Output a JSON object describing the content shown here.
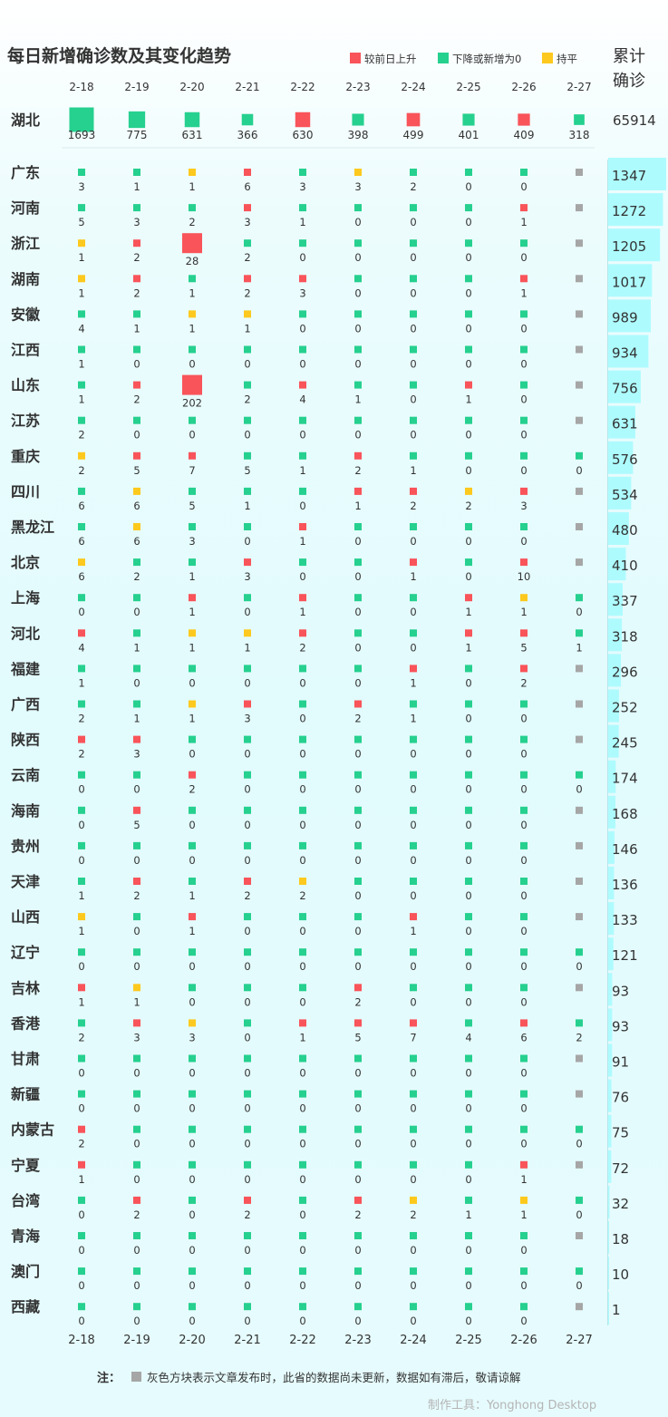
{
  "chart_data": {
    "type": "table",
    "title": "每日新增确诊数及其变化趋势",
    "legend": [
      {
        "label": "较前日上升",
        "color": "#f8545a"
      },
      {
        "label": "下降或新增为0",
        "color": "#26d08f"
      },
      {
        "label": "持平",
        "color": "#fdc91e"
      }
    ],
    "total_label_line1": "累计",
    "total_label_line2": "确诊",
    "dates": [
      "2-18",
      "2-19",
      "2-20",
      "2-21",
      "2-22",
      "2-23",
      "2-24",
      "2-25",
      "2-26",
      "2-27"
    ],
    "colors": {
      "up": "#f8545a",
      "down": "#26d08f",
      "flat": "#fdc91e",
      "none": "#a6a6a6",
      "total_bar": "#aefbfe"
    },
    "hubei": {
      "name": "湖北",
      "values": [
        1693,
        775,
        631,
        366,
        630,
        398,
        499,
        401,
        409,
        318
      ],
      "status": [
        "down",
        "down",
        "down",
        "down",
        "up",
        "down",
        "up",
        "down",
        "up",
        "down"
      ],
      "total": "65914"
    },
    "provinces": [
      {
        "name": "广东",
        "values": [
          3,
          1,
          1,
          6,
          3,
          3,
          2,
          0,
          0,
          null
        ],
        "status": [
          "down",
          "down",
          "flat",
          "up",
          "down",
          "flat",
          "down",
          "down",
          "down",
          "none"
        ],
        "total": 1347
      },
      {
        "name": "河南",
        "values": [
          5,
          3,
          2,
          3,
          1,
          0,
          0,
          0,
          1,
          null
        ],
        "status": [
          "down",
          "down",
          "down",
          "up",
          "down",
          "down",
          "down",
          "down",
          "up",
          "none"
        ],
        "total": 1272
      },
      {
        "name": "浙江",
        "values": [
          1,
          2,
          28,
          2,
          0,
          0,
          0,
          0,
          0,
          null
        ],
        "status": [
          "flat",
          "up",
          "up",
          "down",
          "down",
          "down",
          "down",
          "down",
          "down",
          "none"
        ],
        "total": 1205
      },
      {
        "name": "湖南",
        "values": [
          1,
          2,
          1,
          2,
          3,
          0,
          0,
          0,
          1,
          null
        ],
        "status": [
          "flat",
          "up",
          "down",
          "up",
          "up",
          "down",
          "down",
          "down",
          "up",
          "none"
        ],
        "total": 1017
      },
      {
        "name": "安徽",
        "values": [
          4,
          1,
          1,
          1,
          0,
          0,
          0,
          0,
          0,
          null
        ],
        "status": [
          "down",
          "down",
          "flat",
          "flat",
          "down",
          "down",
          "down",
          "down",
          "down",
          "none"
        ],
        "total": 989
      },
      {
        "name": "江西",
        "values": [
          1,
          0,
          0,
          0,
          0,
          0,
          0,
          0,
          0,
          null
        ],
        "status": [
          "down",
          "down",
          "down",
          "down",
          "down",
          "down",
          "down",
          "down",
          "down",
          "none"
        ],
        "total": 934
      },
      {
        "name": "山东",
        "values": [
          1,
          2,
          202,
          2,
          4,
          1,
          0,
          1,
          0,
          null
        ],
        "status": [
          "down",
          "up",
          "up",
          "down",
          "up",
          "down",
          "down",
          "up",
          "down",
          "none"
        ],
        "total": 756
      },
      {
        "name": "江苏",
        "values": [
          2,
          0,
          0,
          0,
          0,
          0,
          0,
          0,
          0,
          null
        ],
        "status": [
          "down",
          "down",
          "down",
          "down",
          "down",
          "down",
          "down",
          "down",
          "down",
          "none"
        ],
        "total": 631
      },
      {
        "name": "重庆",
        "values": [
          2,
          5,
          7,
          5,
          1,
          2,
          1,
          0,
          0,
          0
        ],
        "status": [
          "flat",
          "up",
          "up",
          "down",
          "down",
          "up",
          "down",
          "down",
          "down",
          "down"
        ],
        "total": 576
      },
      {
        "name": "四川",
        "values": [
          6,
          6,
          5,
          1,
          0,
          1,
          2,
          2,
          3,
          null
        ],
        "status": [
          "down",
          "flat",
          "down",
          "down",
          "down",
          "up",
          "up",
          "flat",
          "up",
          "none"
        ],
        "total": 534
      },
      {
        "name": "黑龙江",
        "values": [
          6,
          6,
          3,
          0,
          1,
          0,
          0,
          0,
          0,
          null
        ],
        "status": [
          "down",
          "flat",
          "down",
          "down",
          "up",
          "down",
          "down",
          "down",
          "down",
          "none"
        ],
        "total": 480
      },
      {
        "name": "北京",
        "values": [
          6,
          2,
          1,
          3,
          0,
          0,
          1,
          0,
          10,
          null
        ],
        "status": [
          "flat",
          "down",
          "down",
          "up",
          "down",
          "down",
          "up",
          "down",
          "up",
          "none"
        ],
        "total": 410
      },
      {
        "name": "上海",
        "values": [
          0,
          0,
          1,
          0,
          1,
          0,
          0,
          1,
          1,
          0
        ],
        "status": [
          "down",
          "down",
          "up",
          "down",
          "up",
          "down",
          "down",
          "up",
          "flat",
          "down"
        ],
        "total": 337
      },
      {
        "name": "河北",
        "values": [
          4,
          1,
          1,
          1,
          2,
          0,
          0,
          1,
          5,
          1
        ],
        "status": [
          "up",
          "down",
          "flat",
          "flat",
          "up",
          "down",
          "down",
          "up",
          "up",
          "down"
        ],
        "total": 318
      },
      {
        "name": "福建",
        "values": [
          1,
          0,
          0,
          0,
          0,
          0,
          1,
          0,
          2,
          null
        ],
        "status": [
          "down",
          "down",
          "down",
          "down",
          "down",
          "down",
          "up",
          "down",
          "up",
          "none"
        ],
        "total": 296
      },
      {
        "name": "广西",
        "values": [
          2,
          1,
          1,
          3,
          0,
          2,
          1,
          0,
          0,
          null
        ],
        "status": [
          "down",
          "down",
          "flat",
          "up",
          "down",
          "up",
          "down",
          "down",
          "down",
          "none"
        ],
        "total": 252
      },
      {
        "name": "陕西",
        "values": [
          2,
          3,
          0,
          0,
          0,
          0,
          0,
          0,
          0,
          null
        ],
        "status": [
          "up",
          "up",
          "down",
          "down",
          "down",
          "down",
          "down",
          "down",
          "down",
          "none"
        ],
        "total": 245
      },
      {
        "name": "云南",
        "values": [
          0,
          0,
          2,
          0,
          0,
          0,
          0,
          0,
          0,
          0
        ],
        "status": [
          "down",
          "down",
          "up",
          "down",
          "down",
          "down",
          "down",
          "down",
          "down",
          "down"
        ],
        "total": 174
      },
      {
        "name": "海南",
        "values": [
          0,
          5,
          0,
          0,
          0,
          0,
          0,
          0,
          0,
          null
        ],
        "status": [
          "down",
          "up",
          "down",
          "down",
          "down",
          "down",
          "down",
          "down",
          "down",
          "none"
        ],
        "total": 168
      },
      {
        "name": "贵州",
        "values": [
          0,
          0,
          0,
          0,
          0,
          0,
          0,
          0,
          0,
          null
        ],
        "status": [
          "down",
          "down",
          "down",
          "down",
          "down",
          "down",
          "down",
          "down",
          "down",
          "none"
        ],
        "total": 146
      },
      {
        "name": "天津",
        "values": [
          1,
          2,
          1,
          2,
          2,
          0,
          0,
          0,
          0,
          null
        ],
        "status": [
          "down",
          "up",
          "down",
          "up",
          "flat",
          "down",
          "down",
          "down",
          "down",
          "none"
        ],
        "total": 136
      },
      {
        "name": "山西",
        "values": [
          1,
          0,
          1,
          0,
          0,
          0,
          1,
          0,
          0,
          null
        ],
        "status": [
          "flat",
          "down",
          "up",
          "down",
          "down",
          "down",
          "up",
          "down",
          "down",
          "none"
        ],
        "total": 133
      },
      {
        "name": "辽宁",
        "values": [
          0,
          0,
          0,
          0,
          0,
          0,
          0,
          0,
          0,
          0
        ],
        "status": [
          "down",
          "down",
          "down",
          "down",
          "down",
          "down",
          "down",
          "down",
          "down",
          "down"
        ],
        "total": 121
      },
      {
        "name": "吉林",
        "values": [
          1,
          1,
          0,
          0,
          0,
          2,
          0,
          0,
          0,
          null
        ],
        "status": [
          "up",
          "flat",
          "down",
          "down",
          "down",
          "up",
          "down",
          "down",
          "down",
          "none"
        ],
        "total": 93
      },
      {
        "name": "香港",
        "values": [
          2,
          3,
          3,
          0,
          1,
          5,
          7,
          4,
          6,
          2
        ],
        "status": [
          "down",
          "up",
          "flat",
          "down",
          "up",
          "up",
          "up",
          "down",
          "up",
          "down"
        ],
        "total": 93
      },
      {
        "name": "甘肃",
        "values": [
          0,
          0,
          0,
          0,
          0,
          0,
          0,
          0,
          0,
          null
        ],
        "status": [
          "down",
          "down",
          "down",
          "down",
          "down",
          "down",
          "down",
          "down",
          "down",
          "none"
        ],
        "total": 91
      },
      {
        "name": "新疆",
        "values": [
          0,
          0,
          0,
          0,
          0,
          0,
          0,
          0,
          0,
          null
        ],
        "status": [
          "down",
          "down",
          "down",
          "down",
          "down",
          "down",
          "down",
          "down",
          "down",
          "none"
        ],
        "total": 76
      },
      {
        "name": "内蒙古",
        "values": [
          2,
          0,
          0,
          0,
          0,
          0,
          0,
          0,
          0,
          0
        ],
        "status": [
          "up",
          "down",
          "down",
          "down",
          "down",
          "down",
          "down",
          "down",
          "down",
          "down"
        ],
        "total": 75
      },
      {
        "name": "宁夏",
        "values": [
          1,
          0,
          0,
          0,
          0,
          0,
          0,
          0,
          1,
          null
        ],
        "status": [
          "up",
          "down",
          "down",
          "down",
          "down",
          "down",
          "down",
          "down",
          "up",
          "none"
        ],
        "total": 72
      },
      {
        "name": "台湾",
        "values": [
          0,
          2,
          0,
          2,
          0,
          2,
          2,
          1,
          1,
          0
        ],
        "status": [
          "down",
          "up",
          "down",
          "up",
          "down",
          "up",
          "flat",
          "down",
          "flat",
          "down"
        ],
        "total": 32
      },
      {
        "name": "青海",
        "values": [
          0,
          0,
          0,
          0,
          0,
          0,
          0,
          0,
          0,
          null
        ],
        "status": [
          "down",
          "down",
          "down",
          "down",
          "down",
          "down",
          "down",
          "down",
          "down",
          "none"
        ],
        "total": 18
      },
      {
        "name": "澳门",
        "values": [
          0,
          0,
          0,
          0,
          0,
          0,
          0,
          0,
          0,
          0
        ],
        "status": [
          "down",
          "down",
          "down",
          "down",
          "down",
          "down",
          "down",
          "down",
          "down",
          "down"
        ],
        "total": 10
      },
      {
        "name": "西藏",
        "values": [
          0,
          0,
          0,
          0,
          0,
          0,
          0,
          0,
          0,
          null
        ],
        "status": [
          "down",
          "down",
          "down",
          "down",
          "down",
          "down",
          "down",
          "down",
          "down",
          "none"
        ],
        "total": 1
      }
    ],
    "note_label": "注：",
    "note_text": "灰色方块表示文章发布时，此省的数据尚未更新，数据如有滞后，敬请谅解",
    "footer": "制作工具：Yonghong Desktop"
  }
}
